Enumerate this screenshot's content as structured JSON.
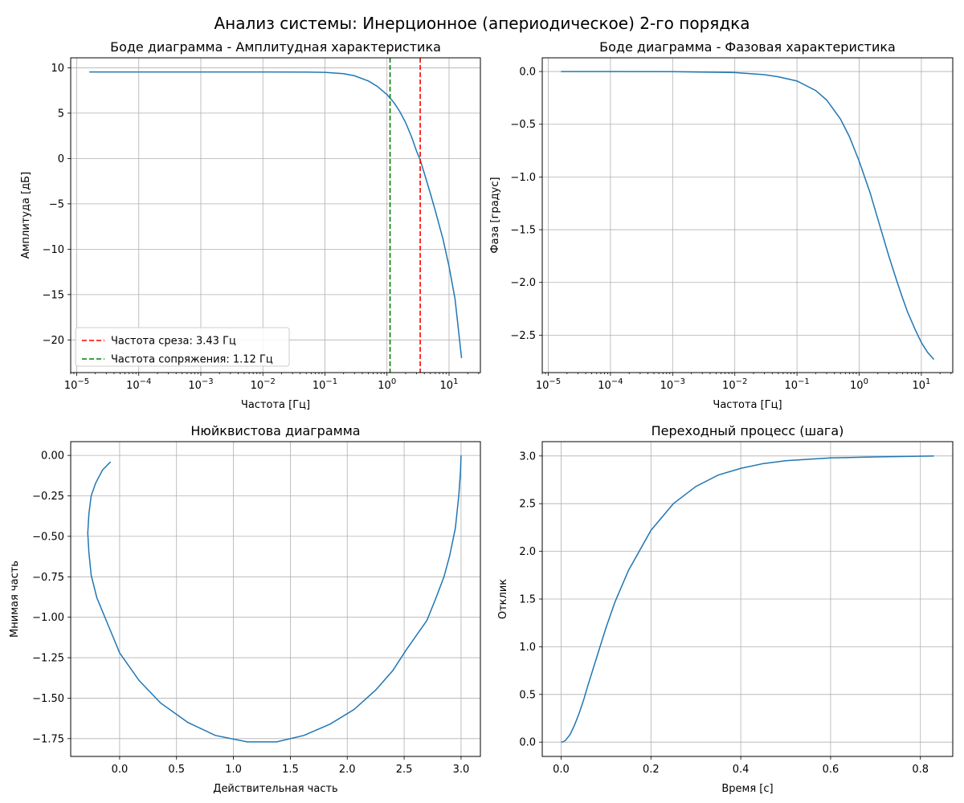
{
  "figure": {
    "suptitle": "Анализ системы: Инерционное (апериодическое) 2-го порядка"
  },
  "chart_data": [
    {
      "id": "magnitude",
      "type": "line",
      "title": "Боде диаграмма - Амплитудная характеристика",
      "xlabel": "Частота [Гц]",
      "ylabel": "Амплитуда [дБ]",
      "xscale": "log",
      "xlim": [
        8e-06,
        32
      ],
      "ylim": [
        -23.6,
        11.1
      ],
      "xticks": [
        {
          "v": 1e-05,
          "base": "10",
          "exp": "−5"
        },
        {
          "v": 0.0001,
          "base": "10",
          "exp": "−4"
        },
        {
          "v": 0.001,
          "base": "10",
          "exp": "−3"
        },
        {
          "v": 0.01,
          "base": "10",
          "exp": "−2"
        },
        {
          "v": 0.1,
          "base": "10",
          "exp": "−1"
        },
        {
          "v": 1,
          "base": "10",
          "exp": "0"
        },
        {
          "v": 10,
          "base": "10",
          "exp": "1"
        }
      ],
      "yticks": [
        {
          "v": 10,
          "label": "10"
        },
        {
          "v": 5,
          "label": "5"
        },
        {
          "v": 0,
          "label": "0"
        },
        {
          "v": -5,
          "label": "−5"
        },
        {
          "v": -10,
          "label": "−10"
        },
        {
          "v": -15,
          "label": "−15"
        },
        {
          "v": -20,
          "label": "−20"
        }
      ],
      "grid": true,
      "series": [
        {
          "color": "#1f77b4",
          "x": [
            1.6e-05,
            0.0001,
            0.001,
            0.01,
            0.05,
            0.1,
            0.2,
            0.3,
            0.5,
            0.7,
            1.0,
            1.3,
            1.6,
            2.0,
            2.5,
            3.0,
            3.43,
            4.0,
            5.0,
            6.0,
            8.0,
            10.0,
            12.5,
            15.9
          ],
          "y": [
            9.54,
            9.54,
            9.54,
            9.54,
            9.53,
            9.5,
            9.35,
            9.12,
            8.55,
            7.95,
            7.05,
            6.15,
            5.2,
            3.95,
            2.35,
            0.8,
            -0.15,
            -1.65,
            -3.85,
            -5.75,
            -8.9,
            -11.9,
            -15.5,
            -22.0
          ]
        }
      ],
      "vlines": [
        {
          "x": 3.43,
          "color": "#ff0000",
          "label": "Частота среза: 3.43 Гц"
        },
        {
          "x": 1.12,
          "color": "#008000",
          "label": "Частота сопряжения: 1.12 Гц"
        }
      ],
      "legend": "lower-left"
    },
    {
      "id": "phase",
      "type": "line",
      "title": "Боде диаграмма - Фазовая характеристика",
      "xlabel": "Частота [Гц]",
      "ylabel": "Фаза [градус]",
      "xscale": "log",
      "xlim": [
        8e-06,
        32
      ],
      "ylim": [
        -2.855,
        0.13
      ],
      "xticks": [
        {
          "v": 1e-05,
          "base": "10",
          "exp": "−5"
        },
        {
          "v": 0.0001,
          "base": "10",
          "exp": "−4"
        },
        {
          "v": 0.001,
          "base": "10",
          "exp": "−3"
        },
        {
          "v": 0.01,
          "base": "10",
          "exp": "−2"
        },
        {
          "v": 0.1,
          "base": "10",
          "exp": "−1"
        },
        {
          "v": 1,
          "base": "10",
          "exp": "0"
        },
        {
          "v": 10,
          "base": "10",
          "exp": "1"
        }
      ],
      "yticks": [
        {
          "v": 0,
          "label": "0.0"
        },
        {
          "v": -0.5,
          "label": "−0.5"
        },
        {
          "v": -1.0,
          "label": "−1.0"
        },
        {
          "v": -1.5,
          "label": "−1.5"
        },
        {
          "v": -2.0,
          "label": "−2.0"
        },
        {
          "v": -2.5,
          "label": "−2.5"
        }
      ],
      "grid": true,
      "series": [
        {
          "color": "#1f77b4",
          "x": [
            1.6e-05,
            0.0001,
            0.001,
            0.01,
            0.03,
            0.05,
            0.1,
            0.2,
            0.3,
            0.5,
            0.7,
            1.0,
            1.5,
            2.0,
            3.0,
            4.0,
            5.0,
            6.0,
            8.0,
            10.0,
            12.5,
            15.9
          ],
          "y": [
            0.0,
            -0.0006,
            -0.0015,
            -0.01,
            -0.03,
            -0.05,
            -0.09,
            -0.18,
            -0.27,
            -0.45,
            -0.62,
            -0.85,
            -1.15,
            -1.4,
            -1.75,
            -1.98,
            -2.15,
            -2.28,
            -2.45,
            -2.57,
            -2.66,
            -2.73
          ]
        }
      ]
    },
    {
      "id": "nyquist",
      "type": "line",
      "title": "Нюйквистова диаграмма",
      "xlabel": "Действительная часть",
      "ylabel": "Мнимая часть",
      "xlim": [
        -0.43,
        3.17
      ],
      "ylim": [
        -1.86,
        0.085
      ],
      "xticks": [
        {
          "v": 0,
          "label": "0.0"
        },
        {
          "v": 0.5,
          "label": "0.5"
        },
        {
          "v": 1.0,
          "label": "1.0"
        },
        {
          "v": 1.5,
          "label": "1.5"
        },
        {
          "v": 2.0,
          "label": "2.0"
        },
        {
          "v": 2.5,
          "label": "2.5"
        },
        {
          "v": 3.0,
          "label": "3.0"
        }
      ],
      "yticks": [
        {
          "v": 0,
          "label": "0.00"
        },
        {
          "v": -0.25,
          "label": "−0.25"
        },
        {
          "v": -0.5,
          "label": "−0.50"
        },
        {
          "v": -0.75,
          "label": "−0.75"
        },
        {
          "v": -1.0,
          "label": "−1.00"
        },
        {
          "v": -1.25,
          "label": "−1.25"
        },
        {
          "v": -1.5,
          "label": "−1.50"
        },
        {
          "v": -1.75,
          "label": "−1.75"
        }
      ],
      "grid": true,
      "series": [
        {
          "color": "#1f77b4",
          "x": [
            3.0,
            2.995,
            2.98,
            2.95,
            2.9,
            2.85,
            2.78,
            2.7,
            2.6,
            2.52,
            2.4,
            2.25,
            2.06,
            1.85,
            1.62,
            1.38,
            1.12,
            0.84,
            0.6,
            0.36,
            0.17,
            0.0,
            -0.1,
            -0.2,
            -0.25,
            -0.27,
            -0.28,
            -0.27,
            -0.25,
            -0.21,
            -0.15,
            -0.08
          ],
          "y": [
            0.0,
            -0.1,
            -0.25,
            -0.45,
            -0.62,
            -0.75,
            -0.88,
            -1.02,
            -1.12,
            -1.2,
            -1.33,
            -1.45,
            -1.57,
            -1.66,
            -1.73,
            -1.77,
            -1.77,
            -1.73,
            -1.65,
            -1.53,
            -1.39,
            -1.22,
            -1.05,
            -0.88,
            -0.74,
            -0.6,
            -0.48,
            -0.36,
            -0.25,
            -0.17,
            -0.09,
            -0.04
          ]
        }
      ]
    },
    {
      "id": "step",
      "type": "line",
      "title": "Переходный процесс (шага)",
      "xlabel": "Время [с]",
      "ylabel": "Отклик",
      "xlim": [
        -0.042,
        0.872
      ],
      "ylim": [
        -0.15,
        3.15
      ],
      "xticks": [
        {
          "v": 0,
          "label": "0.0"
        },
        {
          "v": 0.2,
          "label": "0.2"
        },
        {
          "v": 0.4,
          "label": "0.4"
        },
        {
          "v": 0.6,
          "label": "0.6"
        },
        {
          "v": 0.8,
          "label": "0.8"
        }
      ],
      "yticks": [
        {
          "v": 0,
          "label": "0.0"
        },
        {
          "v": 0.5,
          "label": "0.5"
        },
        {
          "v": 1.0,
          "label": "1.0"
        },
        {
          "v": 1.5,
          "label": "1.5"
        },
        {
          "v": 2.0,
          "label": "2.0"
        },
        {
          "v": 2.5,
          "label": "2.5"
        },
        {
          "v": 3.0,
          "label": "3.0"
        }
      ],
      "grid": true,
      "series": [
        {
          "color": "#1f77b4",
          "x": [
            0.0,
            0.005,
            0.01,
            0.02,
            0.03,
            0.04,
            0.05,
            0.06,
            0.08,
            0.1,
            0.12,
            0.15,
            0.2,
            0.25,
            0.3,
            0.35,
            0.4,
            0.45,
            0.5,
            0.6,
            0.7,
            0.83
          ],
          "y": [
            0.0,
            0.003,
            0.02,
            0.08,
            0.18,
            0.3,
            0.44,
            0.6,
            0.9,
            1.2,
            1.47,
            1.8,
            2.22,
            2.5,
            2.68,
            2.8,
            2.87,
            2.92,
            2.95,
            2.98,
            2.99,
            3.0
          ]
        }
      ]
    }
  ]
}
